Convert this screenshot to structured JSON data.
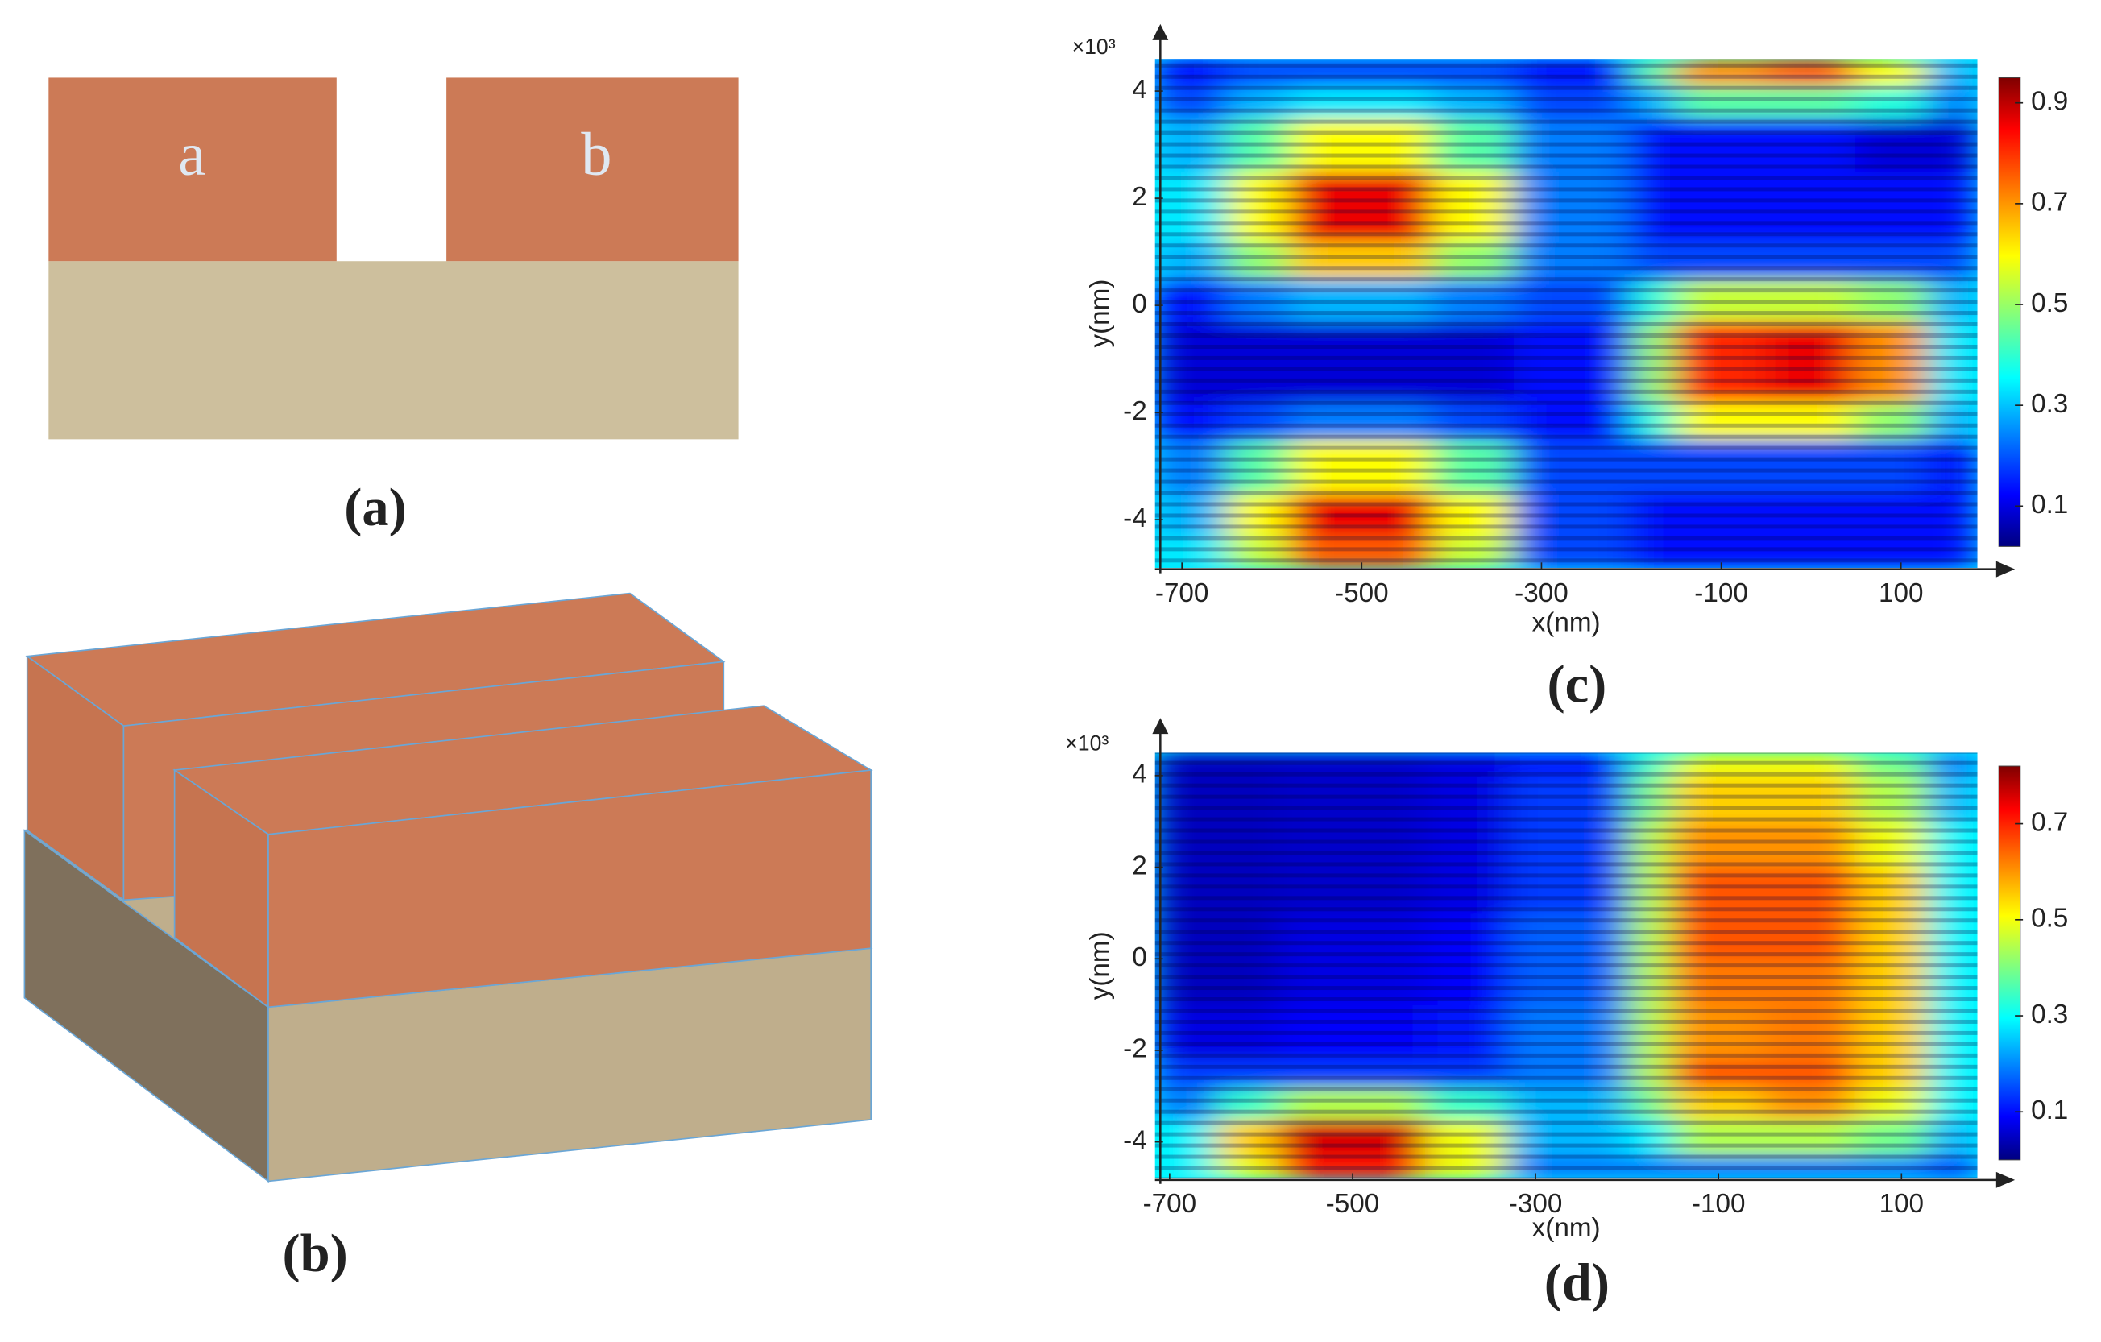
{
  "panels": {
    "a": {
      "label": "(a)",
      "blocks": [
        "a",
        "b"
      ]
    },
    "b": {
      "label": "(b)"
    }
  },
  "chart_data": [
    {
      "type": "heatmap",
      "label": "(c)",
      "xlabel": "x(nm)",
      "ylabel": "y(nm)",
      "y_multiplier": "×10³",
      "colormap": "jet",
      "xlim": [
        -730,
        185
      ],
      "xticks": [
        -700,
        -500,
        -300,
        -100,
        100
      ],
      "ylim": [
        -4.9,
        4.6
      ],
      "yticks": [
        -4,
        -2,
        0,
        2,
        4
      ],
      "zlim": [
        0.02,
        0.95
      ],
      "zticks": [
        0.1,
        0.3,
        0.5,
        0.7,
        0.9
      ],
      "x_edges": [
        -730,
        -650,
        -580,
        -420,
        -330,
        -200,
        -150,
        -50,
        50,
        130,
        185
      ],
      "y_edges": [
        -4.9,
        -4.3,
        -3.5,
        -2.5,
        -1.8,
        -0.3,
        0.5,
        1.2,
        2.5,
        3.5,
        4.1,
        4.6
      ],
      "z": [
        [
          0.35,
          0.55,
          0.75,
          0.55,
          0.2,
          0.15,
          0.15,
          0.15,
          0.15,
          0.15
        ],
        [
          0.3,
          0.6,
          0.85,
          0.6,
          0.2,
          0.15,
          0.15,
          0.15,
          0.15,
          0.15
        ],
        [
          0.25,
          0.45,
          0.6,
          0.45,
          0.2,
          0.2,
          0.2,
          0.2,
          0.2,
          0.15
        ],
        [
          0.15,
          0.2,
          0.25,
          0.2,
          0.15,
          0.4,
          0.6,
          0.6,
          0.5,
          0.3
        ],
        [
          0.1,
          0.1,
          0.1,
          0.1,
          0.15,
          0.5,
          0.8,
          0.85,
          0.7,
          0.35
        ],
        [
          0.15,
          0.25,
          0.3,
          0.25,
          0.2,
          0.4,
          0.55,
          0.55,
          0.5,
          0.3
        ],
        [
          0.3,
          0.5,
          0.65,
          0.5,
          0.25,
          0.2,
          0.2,
          0.2,
          0.2,
          0.2
        ],
        [
          0.35,
          0.6,
          0.85,
          0.6,
          0.25,
          0.15,
          0.15,
          0.15,
          0.15,
          0.15
        ],
        [
          0.3,
          0.45,
          0.6,
          0.45,
          0.25,
          0.15,
          0.15,
          0.15,
          0.1,
          0.1
        ],
        [
          0.2,
          0.3,
          0.35,
          0.3,
          0.2,
          0.3,
          0.45,
          0.45,
          0.4,
          0.25
        ],
        [
          0.15,
          0.2,
          0.2,
          0.2,
          0.15,
          0.45,
          0.7,
          0.75,
          0.6,
          0.3
        ]
      ]
    },
    {
      "type": "heatmap",
      "label": "(d)",
      "xlabel": "x(nm)",
      "ylabel": "y(nm)",
      "y_multiplier": "×10³",
      "colormap": "jet",
      "xlim": [
        -716,
        183
      ],
      "xticks": [
        -700,
        -500,
        -300,
        -100,
        100
      ],
      "ylim": [
        -4.8,
        4.5
      ],
      "yticks": [
        -4,
        -2,
        0,
        2,
        4
      ],
      "zlim": [
        0.0,
        0.82
      ],
      "zticks": [
        0.1,
        0.3,
        0.5,
        0.7
      ],
      "x_edges": [
        -716,
        -650,
        -580,
        -420,
        -330,
        -200,
        -150,
        -50,
        50,
        130,
        183
      ],
      "y_edges": [
        -4.8,
        -4.3,
        -3.5,
        -2.8,
        -2.2,
        -1,
        0,
        1,
        2,
        3,
        4,
        4.5
      ],
      "z": [
        [
          0.3,
          0.5,
          0.7,
          0.5,
          0.2,
          0.2,
          0.2,
          0.2,
          0.2,
          0.15
        ],
        [
          0.3,
          0.55,
          0.75,
          0.5,
          0.25,
          0.3,
          0.45,
          0.45,
          0.4,
          0.25
        ],
        [
          0.2,
          0.35,
          0.45,
          0.35,
          0.25,
          0.4,
          0.55,
          0.6,
          0.5,
          0.3
        ],
        [
          0.15,
          0.15,
          0.15,
          0.15,
          0.2,
          0.45,
          0.65,
          0.65,
          0.55,
          0.3
        ],
        [
          0.08,
          0.08,
          0.1,
          0.12,
          0.2,
          0.45,
          0.6,
          0.62,
          0.55,
          0.3
        ],
        [
          0.05,
          0.05,
          0.08,
          0.1,
          0.18,
          0.45,
          0.62,
          0.62,
          0.55,
          0.3
        ],
        [
          0.05,
          0.05,
          0.08,
          0.1,
          0.18,
          0.45,
          0.65,
          0.65,
          0.55,
          0.3
        ],
        [
          0.05,
          0.05,
          0.06,
          0.08,
          0.15,
          0.45,
          0.65,
          0.65,
          0.55,
          0.3
        ],
        [
          0.05,
          0.05,
          0.06,
          0.08,
          0.15,
          0.45,
          0.6,
          0.6,
          0.5,
          0.3
        ],
        [
          0.05,
          0.05,
          0.06,
          0.08,
          0.15,
          0.4,
          0.55,
          0.55,
          0.45,
          0.25
        ],
        [
          0.05,
          0.05,
          0.06,
          0.08,
          0.12,
          0.35,
          0.5,
          0.5,
          0.4,
          0.2
        ]
      ]
    }
  ]
}
